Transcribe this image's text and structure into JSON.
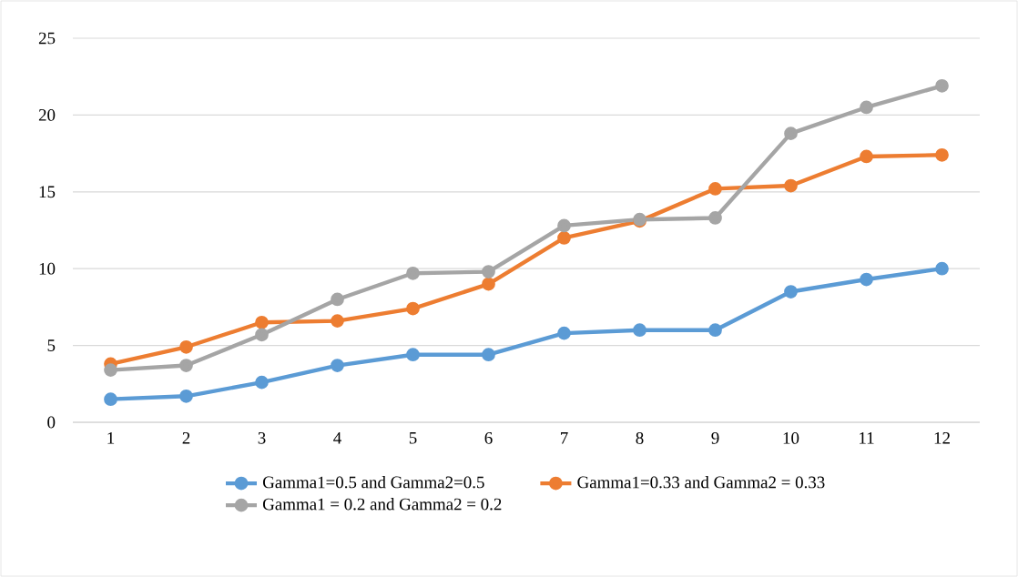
{
  "chart_data": {
    "type": "line",
    "categories": [
      "1",
      "2",
      "3",
      "4",
      "5",
      "6",
      "7",
      "8",
      "9",
      "10",
      "11",
      "12"
    ],
    "series": [
      {
        "name": "Gamma1=0.5 and Gamma2=0.5",
        "color": "#5b9bd5",
        "values": [
          1.5,
          1.7,
          2.6,
          3.7,
          4.4,
          4.4,
          5.8,
          6.0,
          6.0,
          8.5,
          9.3,
          10.0
        ]
      },
      {
        "name": "Gamma1=0.33 and Gamma2 = 0.33",
        "color": "#ed7d31",
        "values": [
          3.8,
          4.9,
          6.5,
          6.6,
          7.4,
          9.0,
          12.0,
          13.1,
          15.2,
          15.4,
          17.3,
          17.4
        ]
      },
      {
        "name": "Gamma1 = 0.2 and Gamma2 = 0.2",
        "color": "#a5a5a5",
        "values": [
          3.4,
          3.7,
          5.7,
          8.0,
          9.7,
          9.8,
          12.8,
          13.2,
          13.3,
          18.8,
          20.5,
          21.9
        ]
      }
    ],
    "ylim": [
      0,
      25
    ],
    "yticks": [
      0,
      5,
      10,
      15,
      20,
      25
    ],
    "grid": "y",
    "legend": "bottom",
    "marker": "circle",
    "line_style": "solid"
  }
}
